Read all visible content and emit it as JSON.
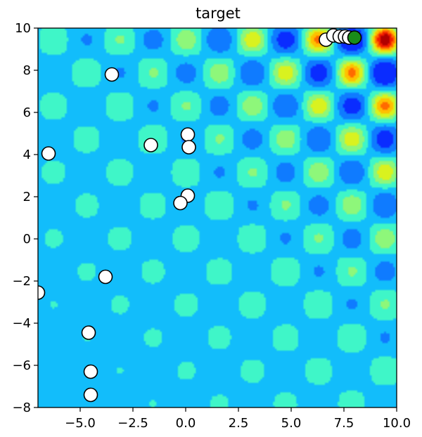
{
  "chart_data": {
    "type": "contour",
    "title": "target",
    "xlabel": "",
    "ylabel": "",
    "xlim": [
      -7,
      10
    ],
    "ylim": [
      -8,
      10
    ],
    "x_ticks": [
      -5.0,
      -2.5,
      0.0,
      2.5,
      5.0,
      7.5,
      10.0
    ],
    "x_tick_labels": [
      "−5.0",
      "−2.5",
      "0.0",
      "2.5",
      "5.0",
      "7.5",
      "10.0"
    ],
    "y_ticks": [
      -8,
      -6,
      -4,
      -2,
      0,
      2,
      4,
      6,
      8,
      10
    ],
    "y_tick_labels": [
      "−8",
      "−6",
      "−4",
      "−2",
      "0",
      "2",
      "4",
      "6",
      "8",
      "10"
    ],
    "colormap": [
      "#0a2cff",
      "#0f7bff",
      "#12bdfb",
      "#3ff6c8",
      "#8ef77a",
      "#d9f21f",
      "#ffc000",
      "#ff6a00",
      "#f21d00",
      "#b00000"
    ],
    "sample_points": [
      {
        "x": -3.5,
        "y": 7.8
      },
      {
        "x": -6.5,
        "y": 4.05
      },
      {
        "x": -1.65,
        "y": 4.45
      },
      {
        "x": 0.1,
        "y": 4.95
      },
      {
        "x": 0.15,
        "y": 4.35
      },
      {
        "x": 0.1,
        "y": 2.05
      },
      {
        "x": -0.25,
        "y": 1.7
      },
      {
        "x": -3.8,
        "y": -1.8
      },
      {
        "x": -7.0,
        "y": -2.55
      },
      {
        "x": -4.6,
        "y": -4.45
      },
      {
        "x": -4.5,
        "y": -6.3
      },
      {
        "x": -4.5,
        "y": -7.4
      },
      {
        "x": 6.65,
        "y": 9.45
      },
      {
        "x": 7.0,
        "y": 9.65
      },
      {
        "x": 7.3,
        "y": 9.6
      },
      {
        "x": 7.55,
        "y": 9.6
      },
      {
        "x": 7.75,
        "y": 9.55
      }
    ],
    "best_point": {
      "x": 8.0,
      "y": 9.55
    },
    "sample_point_color": "#ffffff",
    "best_point_color": "#1a8c1a"
  }
}
